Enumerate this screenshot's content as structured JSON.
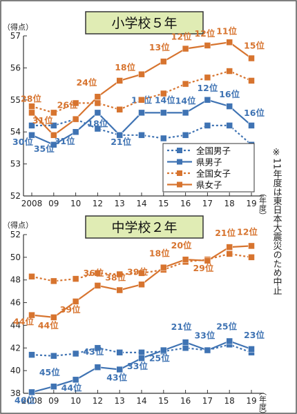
{
  "colors": {
    "blue": "#3f73b3",
    "orange": "#d7742f",
    "title_bg": "#e0ecb4",
    "frame": "#555555"
  },
  "legend": [
    {
      "label": "全国男子",
      "color": "#3f73b3",
      "dashed": true
    },
    {
      "label": "県男子",
      "color": "#3f73b3",
      "dashed": false
    },
    {
      "label": "全国女子",
      "color": "#d7742f",
      "dashed": true
    },
    {
      "label": "県女子",
      "color": "#d7742f",
      "dashed": false
    }
  ],
  "note": "※11年度は東日本大震災のため中止",
  "chart_data": [
    {
      "type": "line",
      "title": "小学校５年",
      "ylabel": "（得点）",
      "xlabel": "（年度）",
      "ylim": [
        52,
        57
      ],
      "yticks": [
        52,
        53,
        54,
        55,
        56,
        57
      ],
      "x": [
        "2008",
        "09",
        "10",
        "12",
        "13",
        "14",
        "15",
        "16",
        "17",
        "18",
        "19"
      ],
      "series": [
        {
          "name": "全国男子",
          "values": [
            54.2,
            54.2,
            54.4,
            54.1,
            53.9,
            53.9,
            53.8,
            53.9,
            54.2,
            54.2,
            53.6
          ]
        },
        {
          "name": "県男子",
          "values": [
            53.9,
            53.6,
            54.0,
            54.6,
            53.9,
            54.6,
            54.6,
            54.6,
            55.0,
            54.8,
            54.2
          ],
          "ranks": [
            "30位",
            "35位",
            "31位",
            "18位",
            "21位",
            "15位",
            "14位",
            "14位",
            "12位",
            "16位",
            "16位"
          ]
        },
        {
          "name": "全国女子",
          "values": [
            54.8,
            54.6,
            54.9,
            54.9,
            54.7,
            55.0,
            55.2,
            55.5,
            55.7,
            55.9,
            55.6
          ]
        },
        {
          "name": "県女子",
          "values": [
            54.6,
            53.9,
            54.4,
            55.1,
            55.6,
            55.8,
            56.2,
            56.6,
            56.7,
            56.8,
            56.3
          ],
          "ranks": [
            "28位",
            "31位",
            "26位",
            "24位",
            "18位",
            "",
            "13位",
            "12位",
            "12位",
            "11位",
            "15位"
          ]
        }
      ]
    },
    {
      "type": "line",
      "title": "中学校２年",
      "ylabel": "（得点）",
      "xlabel": "（年度）",
      "ylim": [
        38,
        52
      ],
      "yticks": [
        38,
        40,
        42,
        44,
        46,
        48,
        50,
        52
      ],
      "x": [
        "2008",
        "09",
        "10",
        "12",
        "13",
        "14",
        "15",
        "16",
        "17",
        "18",
        "19"
      ],
      "series": [
        {
          "name": "全国男子",
          "values": [
            41.4,
            41.3,
            41.5,
            42.0,
            41.6,
            41.6,
            41.7,
            42.0,
            41.8,
            42.3,
            41.6
          ]
        },
        {
          "name": "県男子",
          "values": [
            38.1,
            38.6,
            39.2,
            40.3,
            40.1,
            41.1,
            41.8,
            42.5,
            41.8,
            42.6,
            41.9
          ],
          "ranks": [
            "46位",
            "45位",
            "44位",
            "43位",
            "43位",
            "33位",
            "25位",
            "21位",
            "33位",
            "25位",
            "23位"
          ]
        },
        {
          "name": "全国女子",
          "values": [
            48.3,
            47.9,
            48.1,
            48.6,
            48.5,
            48.6,
            48.9,
            49.6,
            49.8,
            50.3,
            50.0
          ]
        },
        {
          "name": "県女子",
          "values": [
            44.9,
            44.7,
            46.1,
            47.5,
            47.1,
            47.6,
            49.1,
            49.8,
            49.7,
            50.9,
            51.0
          ],
          "ranks": [
            "44位",
            "44位",
            "39位",
            "36位",
            "38位",
            "39位",
            "18位",
            "20位",
            "29位",
            "21位",
            "12位"
          ]
        }
      ]
    }
  ]
}
